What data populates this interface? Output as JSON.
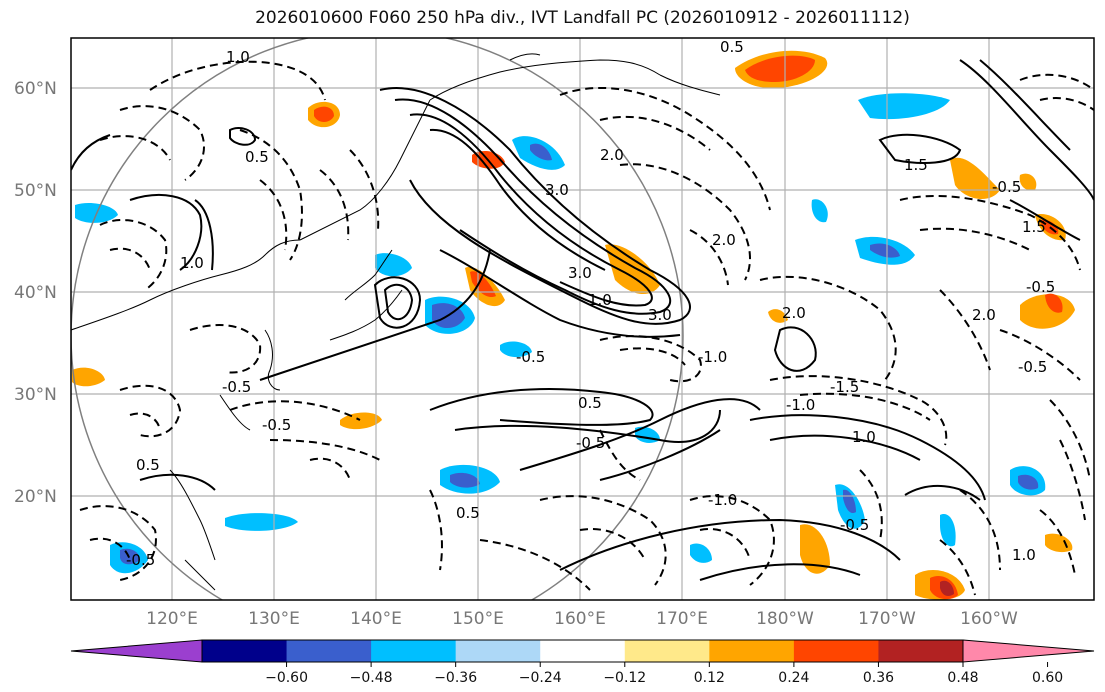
{
  "title": "2026010600 F060 250 hPa div., IVT Landfall PC (2026010912 - 2026011112)",
  "lat_labels": [
    "60°N",
    "50°N",
    "40°N",
    "30°N",
    "20°N"
  ],
  "lon_labels": [
    "120°E",
    "130°E",
    "140°E",
    "150°E",
    "160°E",
    "170°E",
    "180°W",
    "170°W",
    "160°W"
  ],
  "colorbar": {
    "ticks": [
      "−0.60",
      "−0.48",
      "−0.36",
      "−0.24",
      "−0.12",
      "0.12",
      "0.24",
      "0.36",
      "0.48",
      "0.60"
    ],
    "colors": [
      "#9b3fcf",
      "#00008b",
      "#3a5fcd",
      "#00bfff",
      "#add8f7",
      "#ffffff",
      "#ffe98a",
      "#ffa500",
      "#ff4500",
      "#b22222",
      "#ff88aa"
    ]
  },
  "contour_labels": [
    "1.0",
    "0.5",
    "0.5",
    "1.0",
    "3.0",
    "3.0",
    "3.0",
    "2.0",
    "2.0",
    "1.0",
    "0.5",
    "1.0",
    "1.5",
    "2.0",
    "-0.5",
    "-0.5",
    "-0.5",
    "-0.5",
    "-1.0",
    "-1.5",
    "-1.0",
    "2.0",
    "-0.5",
    "-1.0",
    "1.5",
    "-0.5",
    "-0.5",
    "-0.5",
    "0.5",
    "0.5",
    "-0.5",
    "1.0"
  ]
}
